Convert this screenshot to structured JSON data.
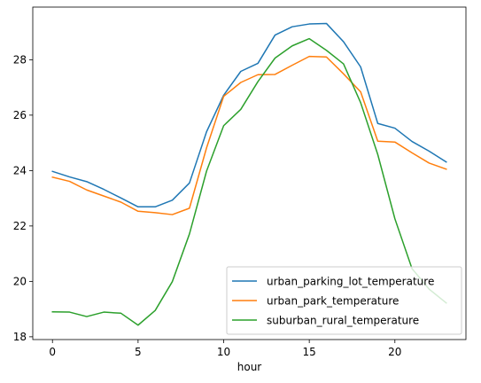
{
  "chart_data": {
    "type": "line",
    "xlabel": "hour",
    "ylabel": "",
    "title": "",
    "x": [
      0,
      1,
      2,
      3,
      4,
      5,
      6,
      7,
      8,
      9,
      10,
      11,
      12,
      13,
      14,
      15,
      16,
      17,
      18,
      19,
      20,
      21,
      22,
      23
    ],
    "xlim": [
      -1.15,
      24.15
    ],
    "ylim": [
      17.9,
      29.9
    ],
    "x_ticks": [
      0,
      5,
      10,
      15,
      20
    ],
    "y_ticks": [
      18,
      20,
      22,
      24,
      26,
      28
    ],
    "grid": false,
    "legend_position": "lower-right",
    "series": [
      {
        "name": "urban_parking_lot_temperature",
        "color": "#1f77b4",
        "values": [
          23.97,
          23.77,
          23.6,
          23.32,
          23.01,
          22.69,
          22.69,
          22.93,
          23.55,
          25.4,
          26.72,
          27.58,
          27.87,
          28.89,
          29.19,
          29.29,
          29.31,
          28.65,
          27.74,
          25.7,
          25.53,
          25.05,
          24.7,
          24.31
        ]
      },
      {
        "name": "urban_park_temperature",
        "color": "#ff7f0e",
        "values": [
          23.76,
          23.61,
          23.3,
          23.08,
          22.86,
          22.53,
          22.48,
          22.41,
          22.64,
          24.82,
          26.68,
          27.18,
          27.46,
          27.47,
          27.8,
          28.12,
          28.1,
          27.49,
          26.84,
          25.06,
          25.03,
          24.64,
          24.27,
          24.05
        ]
      },
      {
        "name": "suburban_rural_temperature",
        "color": "#2ca02c",
        "values": [
          18.9,
          18.89,
          18.73,
          18.89,
          18.85,
          18.42,
          18.95,
          19.99,
          21.71,
          23.98,
          25.62,
          26.21,
          27.21,
          28.06,
          28.5,
          28.76,
          28.34,
          27.85,
          26.45,
          24.58,
          22.26,
          20.46,
          19.72,
          19.22
        ]
      }
    ]
  }
}
